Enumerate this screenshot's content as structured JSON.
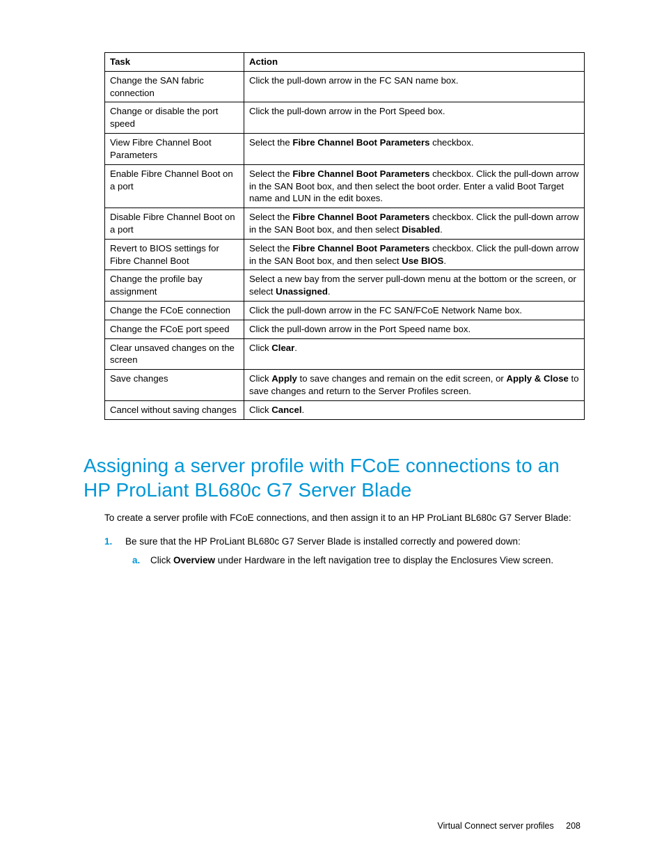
{
  "table": {
    "headers": {
      "task": "Task",
      "action": "Action"
    },
    "rows": [
      {
        "task": "Change the SAN fabric connection",
        "action": [
          {
            "t": "Click the pull-down arrow in the FC SAN name box."
          }
        ]
      },
      {
        "task": "Change or disable the port speed",
        "action": [
          {
            "t": "Click the pull-down arrow in the Port Speed box."
          }
        ]
      },
      {
        "task": "View Fibre Channel Boot Parameters",
        "action": [
          {
            "t": "Select the "
          },
          {
            "t": "Fibre Channel Boot Parameters",
            "b": true
          },
          {
            "t": " checkbox."
          }
        ]
      },
      {
        "task": "Enable Fibre Channel Boot on a port",
        "action": [
          {
            "t": "Select the "
          },
          {
            "t": "Fibre Channel Boot Parameters",
            "b": true
          },
          {
            "t": " checkbox. Click the pull-down arrow in the SAN Boot box, and then select the boot order. Enter a valid Boot Target name and LUN in the edit boxes."
          }
        ]
      },
      {
        "task": "Disable Fibre Channel Boot on a port",
        "action": [
          {
            "t": "Select the "
          },
          {
            "t": "Fibre Channel Boot Parameters",
            "b": true
          },
          {
            "t": " checkbox. Click the pull-down arrow in the SAN Boot box, and then select "
          },
          {
            "t": "Disabled",
            "b": true
          },
          {
            "t": "."
          }
        ]
      },
      {
        "task": "Revert to BIOS settings for Fibre Channel Boot",
        "action": [
          {
            "t": "Select the "
          },
          {
            "t": "Fibre Channel Boot Parameters",
            "b": true
          },
          {
            "t": " checkbox. Click the pull-down arrow in the SAN Boot box, and then select "
          },
          {
            "t": "Use BIOS",
            "b": true
          },
          {
            "t": "."
          }
        ]
      },
      {
        "task": "Change the profile bay assignment",
        "action": [
          {
            "t": "Select a new bay from the server pull-down menu at the bottom or the screen, or select "
          },
          {
            "t": "Unassigned",
            "b": true
          },
          {
            "t": "."
          }
        ]
      },
      {
        "task": "Change the FCoE connection",
        "action": [
          {
            "t": "Click the pull-down arrow in the FC SAN/FCoE Network Name box."
          }
        ]
      },
      {
        "task": "Change the FCoE port speed",
        "action": [
          {
            "t": "Click the pull-down arrow in the Port Speed name box."
          }
        ]
      },
      {
        "task": "Clear unsaved changes on the screen",
        "action": [
          {
            "t": "Click "
          },
          {
            "t": "Clear",
            "b": true
          },
          {
            "t": "."
          }
        ]
      },
      {
        "task": "Save changes",
        "action": [
          {
            "t": "Click "
          },
          {
            "t": "Apply",
            "b": true
          },
          {
            "t": " to save changes and remain on the edit screen, or "
          },
          {
            "t": "Apply & Close",
            "b": true
          },
          {
            "t": " to save changes and return to the Server Profiles screen."
          }
        ]
      },
      {
        "task": "Cancel without saving changes",
        "action": [
          {
            "t": "Click "
          },
          {
            "t": "Cancel",
            "b": true
          },
          {
            "t": "."
          }
        ]
      }
    ]
  },
  "heading": "Assigning a server profile with FCoE connections to an HP ProLiant BL680c G7 Server Blade",
  "intro": "To create a server profile with FCoE connections, and then assign it to an HP ProLiant BL680c G7 Server Blade:",
  "steps": {
    "s1_marker": "1.",
    "s1_text": "Be sure that the HP ProLiant BL680c G7 Server Blade is installed correctly and powered down:",
    "s1a_marker": "a.",
    "s1a_segments": [
      {
        "t": "Click "
      },
      {
        "t": "Overview",
        "b": true
      },
      {
        "t": " under Hardware in the left navigation tree to display the Enclosures View screen."
      }
    ]
  },
  "footer": {
    "section": "Virtual Connect server profiles",
    "page": "208"
  },
  "colors": {
    "accent": "#0096d6",
    "text": "#000000",
    "background": "#ffffff",
    "border": "#000000"
  },
  "typography": {
    "body_font": "Arial",
    "body_size_pt": 10,
    "heading_size_pt": 21
  }
}
